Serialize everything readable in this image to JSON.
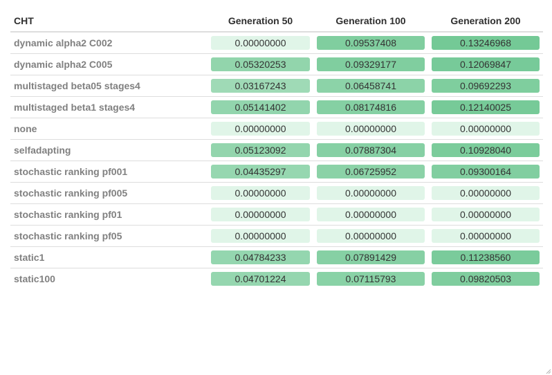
{
  "table": {
    "headers": [
      "CHT",
      "Generation 50",
      "Generation 100",
      "Generation 200"
    ],
    "scale": {
      "low_color": "#e0f5e8",
      "high_color": "#74c996",
      "max_value": 0.13246968
    },
    "rows": [
      {
        "label": "dynamic alpha2 C002",
        "values": [
          "0.00000000",
          "0.09537408",
          "0.13246968"
        ]
      },
      {
        "label": "dynamic alpha2 C005",
        "values": [
          "0.05320253",
          "0.09329177",
          "0.12069847"
        ]
      },
      {
        "label": "multistaged beta05 stages4",
        "values": [
          "0.03167243",
          "0.06458741",
          "0.09692293"
        ]
      },
      {
        "label": "multistaged beta1 stages4",
        "values": [
          "0.05141402",
          "0.08174816",
          "0.12140025"
        ]
      },
      {
        "label": "none",
        "values": [
          "0.00000000",
          "0.00000000",
          "0.00000000"
        ]
      },
      {
        "label": "selfadapting",
        "values": [
          "0.05123092",
          "0.07887304",
          "0.10928040"
        ]
      },
      {
        "label": "stochastic ranking pf001",
        "values": [
          "0.04435297",
          "0.06725952",
          "0.09300164"
        ]
      },
      {
        "label": "stochastic ranking pf005",
        "values": [
          "0.00000000",
          "0.00000000",
          "0.00000000"
        ]
      },
      {
        "label": "stochastic ranking pf01",
        "values": [
          "0.00000000",
          "0.00000000",
          "0.00000000"
        ]
      },
      {
        "label": "stochastic ranking pf05",
        "values": [
          "0.00000000",
          "0.00000000",
          "0.00000000"
        ]
      },
      {
        "label": "static1",
        "values": [
          "0.04784233",
          "0.07891429",
          "0.11238560"
        ]
      },
      {
        "label": "static100",
        "values": [
          "0.04701224",
          "0.07115793",
          "0.09820503"
        ]
      }
    ]
  },
  "icons": {
    "resize_grip": "resize-grip-icon"
  }
}
